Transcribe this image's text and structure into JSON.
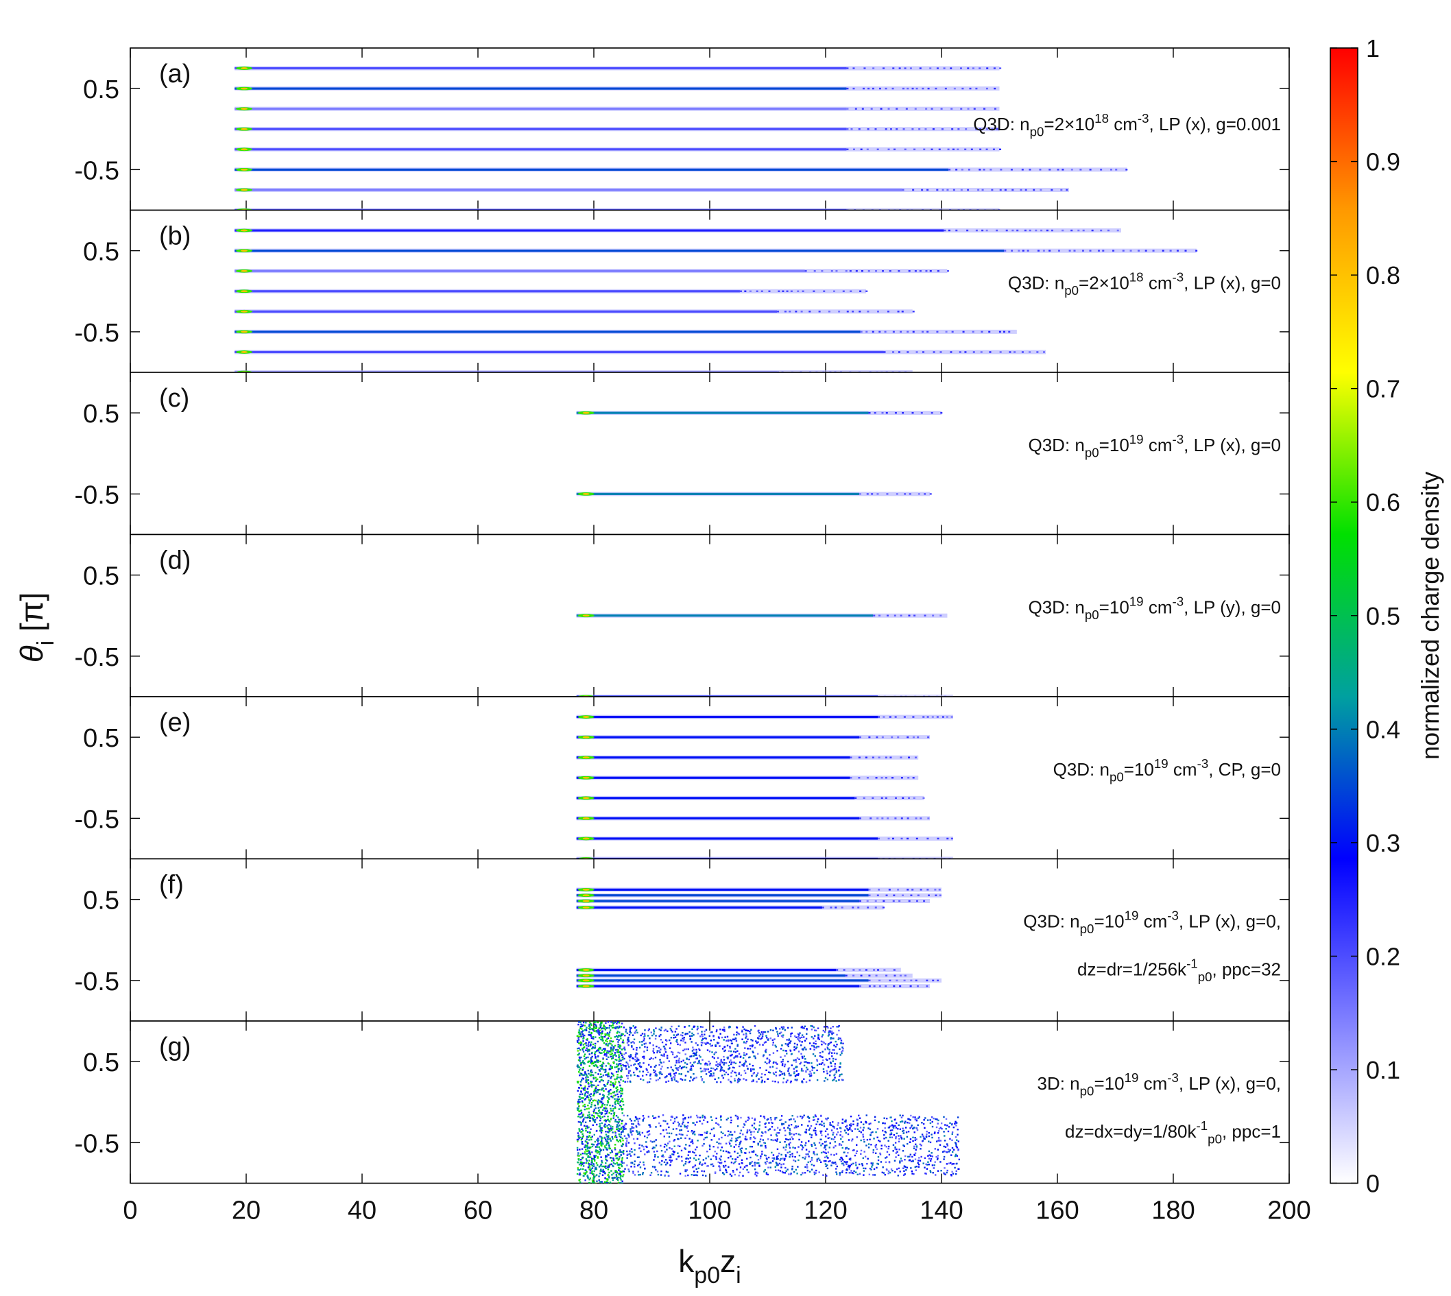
{
  "chart_data": {
    "type": "scatter",
    "xlabel_main": "k",
    "xlabel_sub": "p0",
    "xlabel_main2": "z",
    "xlabel_sub2": "i",
    "ylabel_main": "θ",
    "ylabel_sub": "i",
    "ylabel_unit": "[π]",
    "xlim": [
      0,
      200
    ],
    "xticks": [
      0,
      20,
      40,
      60,
      80,
      100,
      120,
      140,
      160,
      180,
      200
    ],
    "yticks": [
      0.5,
      -0.5
    ],
    "ylim_each_panel": [
      -1,
      1
    ],
    "grid": false,
    "colorbar": {
      "label": "normalized charge density",
      "range": [
        0,
        1
      ],
      "ticks": [
        0,
        0.1,
        0.2,
        0.3,
        0.4,
        0.5,
        0.6,
        0.7,
        0.8,
        0.9,
        1
      ],
      "colors": [
        "#ffffff",
        "#8080ff",
        "#0000ff",
        "#00a0a0",
        "#00e000",
        "#ffff00",
        "#ff9900",
        "#ff0000"
      ]
    },
    "panels": [
      {
        "letter": "(a)",
        "annotation": [
          {
            "t": "Q3D: n",
            "s": ""
          },
          {
            "t": "p0",
            "s": "sub"
          },
          {
            "t": "=2×10",
            "s": ""
          },
          {
            "t": "18",
            "s": "sup"
          },
          {
            "t": " cm",
            "s": ""
          },
          {
            "t": "-3",
            "s": "sup"
          },
          {
            "t": ", LP (x), g=0.001",
            "s": ""
          }
        ],
        "annotation2": [],
        "lines": [
          {
            "theta": 0.75,
            "x0": 18,
            "x1": 150,
            "intensity": 0.2
          },
          {
            "theta": 0.5,
            "x0": 18,
            "x1": 150,
            "intensity": 0.35
          },
          {
            "theta": 0.25,
            "x0": 18,
            "x1": 150,
            "intensity": 0.15
          },
          {
            "theta": 0.0,
            "x0": 18,
            "x1": 150,
            "intensity": 0.2
          },
          {
            "theta": -0.25,
            "x0": 18,
            "x1": 150,
            "intensity": 0.2
          },
          {
            "theta": -0.5,
            "x0": 18,
            "x1": 172,
            "intensity": 0.35
          },
          {
            "theta": -0.75,
            "x0": 18,
            "x1": 162,
            "intensity": 0.15
          },
          {
            "theta": -1.0,
            "x0": 18,
            "x1": 150,
            "intensity": 0.2
          }
        ],
        "clouds": []
      },
      {
        "letter": "(b)",
        "annotation": [
          {
            "t": "Q3D: n",
            "s": ""
          },
          {
            "t": "p0",
            "s": "sub"
          },
          {
            "t": "=2×10",
            "s": ""
          },
          {
            "t": "18",
            "s": "sup"
          },
          {
            "t": " cm",
            "s": ""
          },
          {
            "t": "-3",
            "s": "sup"
          },
          {
            "t": ", LP (x), g=0",
            "s": ""
          }
        ],
        "annotation2": [],
        "lines": [
          {
            "theta": 0.75,
            "x0": 18,
            "x1": 171,
            "intensity": 0.25
          },
          {
            "theta": 0.5,
            "x0": 18,
            "x1": 184,
            "intensity": 0.35
          },
          {
            "theta": 0.25,
            "x0": 18,
            "x1": 141,
            "intensity": 0.15
          },
          {
            "theta": 0.0,
            "x0": 18,
            "x1": 127,
            "intensity": 0.2
          },
          {
            "theta": -0.25,
            "x0": 18,
            "x1": 135,
            "intensity": 0.2
          },
          {
            "theta": -0.5,
            "x0": 18,
            "x1": 153,
            "intensity": 0.35
          },
          {
            "theta": -0.75,
            "x0": 18,
            "x1": 158,
            "intensity": 0.2
          },
          {
            "theta": -1.0,
            "x0": 18,
            "x1": 135,
            "intensity": 0.15
          }
        ],
        "clouds": []
      },
      {
        "letter": "(c)",
        "annotation": [
          {
            "t": "Q3D: n",
            "s": ""
          },
          {
            "t": "p0",
            "s": "sub"
          },
          {
            "t": "=10",
            "s": ""
          },
          {
            "t": "19",
            "s": "sup"
          },
          {
            "t": " cm",
            "s": ""
          },
          {
            "t": "-3",
            "s": "sup"
          },
          {
            "t": ", LP (x), g=0",
            "s": ""
          }
        ],
        "annotation2": [],
        "lines": [
          {
            "theta": 0.5,
            "x0": 77,
            "x1": 140,
            "intensity": 0.4
          },
          {
            "theta": -0.5,
            "x0": 77,
            "x1": 138,
            "intensity": 0.4
          }
        ],
        "clouds": []
      },
      {
        "letter": "(d)",
        "annotation": [
          {
            "t": "Q3D: n",
            "s": ""
          },
          {
            "t": "p0",
            "s": "sub"
          },
          {
            "t": "=10",
            "s": ""
          },
          {
            "t": "19",
            "s": "sup"
          },
          {
            "t": " cm",
            "s": ""
          },
          {
            "t": "-3",
            "s": "sup"
          },
          {
            "t": ", LP (y), g=0",
            "s": ""
          }
        ],
        "annotation2": [],
        "lines": [
          {
            "theta": 0.0,
            "x0": 77,
            "x1": 141,
            "intensity": 0.4
          },
          {
            "theta": -1.0,
            "x0": 77,
            "x1": 142,
            "intensity": 0.3
          }
        ],
        "clouds": []
      },
      {
        "letter": "(e)",
        "annotation": [
          {
            "t": "Q3D: n",
            "s": ""
          },
          {
            "t": "p0",
            "s": "sub"
          },
          {
            "t": "=10",
            "s": ""
          },
          {
            "t": "19",
            "s": "sup"
          },
          {
            "t": " cm",
            "s": ""
          },
          {
            "t": "-3",
            "s": "sup"
          },
          {
            "t": ", CP, g=0",
            "s": ""
          }
        ],
        "annotation2": [],
        "lines": [
          {
            "theta": 0.75,
            "x0": 77,
            "x1": 142,
            "intensity": 0.3
          },
          {
            "theta": 0.5,
            "x0": 77,
            "x1": 138,
            "intensity": 0.3
          },
          {
            "theta": 0.25,
            "x0": 77,
            "x1": 136,
            "intensity": 0.3
          },
          {
            "theta": 0.0,
            "x0": 77,
            "x1": 136,
            "intensity": 0.3
          },
          {
            "theta": -0.25,
            "x0": 77,
            "x1": 137,
            "intensity": 0.3
          },
          {
            "theta": -0.5,
            "x0": 77,
            "x1": 138,
            "intensity": 0.3
          },
          {
            "theta": -0.75,
            "x0": 77,
            "x1": 142,
            "intensity": 0.3
          },
          {
            "theta": -1.0,
            "x0": 77,
            "x1": 142,
            "intensity": 0.3
          }
        ],
        "clouds": []
      },
      {
        "letter": "(f)",
        "annotation": [
          {
            "t": "Q3D: n",
            "s": ""
          },
          {
            "t": "p0",
            "s": "sub"
          },
          {
            "t": "=10",
            "s": ""
          },
          {
            "t": "19",
            "s": "sup"
          },
          {
            "t": " cm",
            "s": ""
          },
          {
            "t": "-3",
            "s": "sup"
          },
          {
            "t": ", LP (x), g=0,",
            "s": ""
          }
        ],
        "annotation2": [
          {
            "t": "dz=dr=1/256k",
            "s": ""
          },
          {
            "t": "-1",
            "s": "sup"
          },
          {
            "t": "p0",
            "s": "sub"
          },
          {
            "t": ", ppc=32",
            "s": ""
          }
        ],
        "lines": [
          {
            "theta": 0.62,
            "x0": 77,
            "x1": 140,
            "intensity": 0.3
          },
          {
            "theta": 0.55,
            "x0": 77,
            "x1": 140,
            "intensity": 0.35
          },
          {
            "theta": 0.48,
            "x0": 77,
            "x1": 138,
            "intensity": 0.35
          },
          {
            "theta": 0.4,
            "x0": 77,
            "x1": 130,
            "intensity": 0.3
          },
          {
            "theta": -0.37,
            "x0": 77,
            "x1": 133,
            "intensity": 0.3
          },
          {
            "theta": -0.44,
            "x0": 77,
            "x1": 135,
            "intensity": 0.35
          },
          {
            "theta": -0.5,
            "x0": 77,
            "x1": 140,
            "intensity": 0.35
          },
          {
            "theta": -0.57,
            "x0": 77,
            "x1": 138,
            "intensity": 0.3
          }
        ],
        "clouds": []
      },
      {
        "letter": "(g)",
        "annotation": [
          {
            "t": "3D: n",
            "s": ""
          },
          {
            "t": "p0",
            "s": "sub"
          },
          {
            "t": "=10",
            "s": ""
          },
          {
            "t": "19",
            "s": "sup"
          },
          {
            "t": " cm",
            "s": ""
          },
          {
            "t": "-3",
            "s": "sup"
          },
          {
            "t": ", LP (x), g=0,",
            "s": ""
          }
        ],
        "annotation2": [
          {
            "t": "dz=dx=dy=1/80k",
            "s": ""
          },
          {
            "t": "-1",
            "s": "sup"
          },
          {
            "t": "p0",
            "s": "sub"
          },
          {
            "t": ", ppc=1",
            "s": ""
          }
        ],
        "lines": [],
        "clouds": [
          {
            "x0": 77,
            "x1": 85,
            "y0": -1.0,
            "y1": 1.0,
            "n": 1400,
            "intensity": 0.45
          },
          {
            "x0": 85,
            "x1": 123,
            "y0": 0.25,
            "y1": 0.95,
            "n": 1100,
            "intensity": 0.3
          },
          {
            "x0": 85,
            "x1": 143,
            "y0": -0.9,
            "y1": -0.15,
            "n": 1500,
            "intensity": 0.3
          }
        ]
      }
    ]
  }
}
